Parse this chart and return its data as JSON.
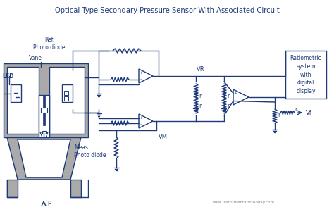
{
  "title": "Optical Type Secondary Pressure Sensor With Associated Circuit",
  "bg_color": "#ffffff",
  "line_color": "#1e3a78",
  "gray_fill": "#aaaaaa",
  "text_color": "#1e3a78",
  "watermark": "www.InstrumentationToday.com",
  "labels": {
    "ref_photo": "Ref.\nPhoto diode",
    "vane": "Vane",
    "led": "LED",
    "meas_photo": "Meas.\nPhoto diode",
    "p": "p",
    "vr": "VR",
    "vm": "VM",
    "vf": "Vf",
    "r": "r",
    "ratiometric": "Ratiometric\nsystem\nwith\ndigital\ndisplay"
  }
}
